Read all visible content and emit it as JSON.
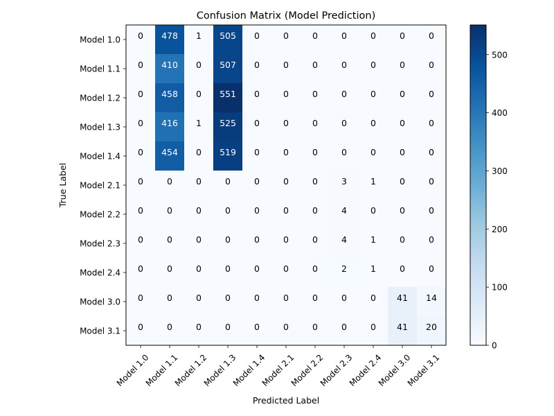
{
  "chart_data": {
    "type": "heatmap",
    "title": "Confusion Matrix (Model Prediction)",
    "xlabel": "Predicted Label",
    "ylabel": "True Label",
    "x_categories": [
      "Model 1.0",
      "Model 1.1",
      "Model 1.2",
      "Model 1.3",
      "Model 1.4",
      "Model 2.1",
      "Model 2.2",
      "Model 2.3",
      "Model 2.4",
      "Model 3.0",
      "Model 3.1"
    ],
    "y_categories": [
      "Model 1.0",
      "Model 1.1",
      "Model 1.2",
      "Model 1.3",
      "Model 1.4",
      "Model 2.1",
      "Model 2.2",
      "Model 2.3",
      "Model 2.4",
      "Model 3.0",
      "Model 3.1"
    ],
    "values": [
      [
        0,
        478,
        1,
        505,
        0,
        0,
        0,
        0,
        0,
        0,
        0
      ],
      [
        0,
        410,
        0,
        507,
        0,
        0,
        0,
        0,
        0,
        0,
        0
      ],
      [
        0,
        458,
        0,
        551,
        0,
        0,
        0,
        0,
        0,
        0,
        0
      ],
      [
        0,
        416,
        1,
        525,
        0,
        0,
        0,
        0,
        0,
        0,
        0
      ],
      [
        0,
        454,
        0,
        519,
        0,
        0,
        0,
        0,
        0,
        0,
        0
      ],
      [
        0,
        0,
        0,
        0,
        0,
        0,
        0,
        3,
        1,
        0,
        0
      ],
      [
        0,
        0,
        0,
        0,
        0,
        0,
        0,
        4,
        0,
        0,
        0
      ],
      [
        0,
        0,
        0,
        0,
        0,
        0,
        0,
        4,
        1,
        0,
        0
      ],
      [
        0,
        0,
        0,
        0,
        0,
        0,
        0,
        2,
        1,
        0,
        0
      ],
      [
        0,
        0,
        0,
        0,
        0,
        0,
        0,
        0,
        0,
        41,
        14
      ],
      [
        0,
        0,
        0,
        0,
        0,
        0,
        0,
        0,
        0,
        41,
        20
      ]
    ],
    "colormap": "Blues",
    "colorbar": {
      "min": 0,
      "max": 551,
      "ticks": [
        0,
        100,
        200,
        300,
        400,
        500
      ]
    }
  }
}
